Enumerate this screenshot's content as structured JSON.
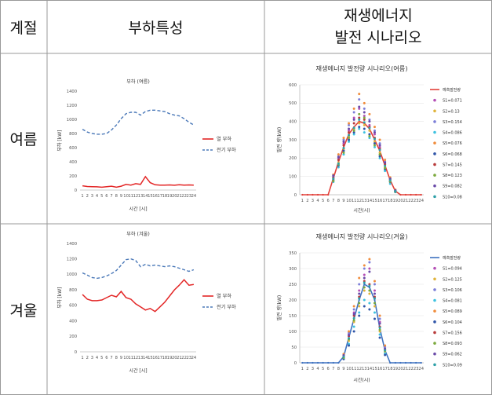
{
  "table": {
    "headers": {
      "season": "계절",
      "load": "부하특성",
      "renewable_line1": "재생에너지",
      "renewable_line2": "발전 시나리오"
    },
    "rows": [
      {
        "season": "여름"
      },
      {
        "season": "겨울"
      }
    ]
  },
  "colors": {
    "heat_load": "#e32626",
    "elec_load": "#4a78b8",
    "summer_pred": "#e2403a",
    "winter_pred": "#3f72c0",
    "scenarios": [
      "#b44fb6",
      "#e0b43c",
      "#7c7ed8",
      "#3ec2e0",
      "#f08c3c",
      "#2f55a8",
      "#b83a3a",
      "#7caa3e",
      "#6a4aa8",
      "#2ea0a8"
    ]
  },
  "chart_data": [
    {
      "id": "summer-load",
      "type": "line",
      "title": "부하 (여름)",
      "xlabel": "시간 [시]",
      "ylabel": "부하 [kW]",
      "ylim": [
        0,
        1400
      ],
      "yticks": [
        0,
        200,
        400,
        600,
        800,
        1000,
        1200,
        1400
      ],
      "x": [
        1,
        2,
        3,
        4,
        5,
        6,
        7,
        8,
        9,
        10,
        11,
        12,
        13,
        14,
        15,
        16,
        17,
        18,
        19,
        20,
        21,
        22,
        23,
        24
      ],
      "series": [
        {
          "name": "열 부하",
          "style": "solid",
          "values": [
            60,
            50,
            48,
            45,
            40,
            48,
            55,
            40,
            55,
            80,
            70,
            90,
            80,
            190,
            105,
            75,
            70,
            70,
            72,
            68,
            75,
            70,
            72,
            70
          ]
        },
        {
          "name": "전기 부하",
          "style": "dashed",
          "values": [
            860,
            820,
            800,
            790,
            790,
            800,
            850,
            920,
            1010,
            1080,
            1100,
            1100,
            1060,
            1110,
            1130,
            1130,
            1120,
            1110,
            1080,
            1060,
            1050,
            1010,
            960,
            920
          ]
        }
      ]
    },
    {
      "id": "summer-renewable",
      "type": "line",
      "title": "재생에너지 발전량 시나리오(여름)",
      "xlabel": "시간(시)",
      "ylabel": "발전 량(kW)",
      "ylim": [
        0,
        600
      ],
      "yticks": [
        0,
        100,
        200,
        300,
        400,
        500,
        600
      ],
      "x": [
        1,
        2,
        3,
        4,
        5,
        6,
        7,
        8,
        9,
        10,
        11,
        12,
        13,
        14,
        15,
        16,
        17,
        18,
        19,
        20,
        21,
        22,
        23,
        24
      ],
      "predicted": {
        "name": "예측발전량",
        "values": [
          0,
          0,
          0,
          0,
          0,
          0,
          90,
          180,
          260,
          330,
          370,
          400,
          390,
          360,
          300,
          240,
          160,
          80,
          20,
          0,
          0,
          0,
          0,
          0
        ]
      },
      "scenarios": [
        {
          "name": "S1=0.071",
          "values": [
            0,
            0,
            0,
            0,
            0,
            0,
            95,
            200,
            280,
            350,
            420,
            470,
            430,
            380,
            330,
            260,
            170,
            85,
            22,
            0,
            0,
            0,
            0,
            0
          ]
        },
        {
          "name": "S2=0.13",
          "values": [
            0,
            0,
            0,
            0,
            0,
            0,
            85,
            175,
            250,
            320,
            360,
            390,
            380,
            350,
            290,
            230,
            150,
            75,
            18,
            0,
            0,
            0,
            0,
            0
          ]
        },
        {
          "name": "S3=0.154",
          "values": [
            0,
            0,
            0,
            0,
            0,
            0,
            100,
            210,
            300,
            380,
            450,
            520,
            470,
            410,
            350,
            280,
            180,
            90,
            25,
            0,
            0,
            0,
            0,
            0
          ]
        },
        {
          "name": "S4=0.086",
          "values": [
            0,
            0,
            0,
            0,
            0,
            0,
            70,
            150,
            220,
            290,
            330,
            360,
            340,
            310,
            260,
            200,
            130,
            60,
            15,
            0,
            0,
            0,
            0,
            0
          ]
        },
        {
          "name": "S5=0.076",
          "values": [
            0,
            0,
            0,
            0,
            0,
            0,
            110,
            220,
            310,
            390,
            470,
            550,
            500,
            440,
            370,
            300,
            190,
            95,
            28,
            0,
            0,
            0,
            0,
            0
          ]
        },
        {
          "name": "S6=0.068",
          "values": [
            0,
            0,
            0,
            0,
            0,
            0,
            80,
            160,
            240,
            300,
            340,
            370,
            360,
            330,
            280,
            210,
            140,
            70,
            16,
            0,
            0,
            0,
            0,
            0
          ]
        },
        {
          "name": "S7=0.145",
          "values": [
            0,
            0,
            0,
            0,
            0,
            0,
            92,
            190,
            270,
            340,
            390,
            420,
            410,
            370,
            310,
            250,
            165,
            82,
            21,
            0,
            0,
            0,
            0,
            0
          ]
        },
        {
          "name": "S8=0.123",
          "values": [
            0,
            0,
            0,
            0,
            0,
            0,
            75,
            165,
            230,
            310,
            350,
            440,
            420,
            320,
            270,
            220,
            145,
            72,
            17,
            0,
            0,
            0,
            0,
            0
          ]
        },
        {
          "name": "S9=0.082",
          "values": [
            0,
            0,
            0,
            0,
            0,
            0,
            105,
            205,
            290,
            360,
            410,
            480,
            450,
            400,
            340,
            270,
            175,
            88,
            24,
            0,
            0,
            0,
            0,
            0
          ]
        },
        {
          "name": "S10=0.08",
          "values": [
            0,
            0,
            0,
            0,
            0,
            0,
            88,
            170,
            255,
            325,
            365,
            410,
            395,
            365,
            305,
            245,
            158,
            78,
            19,
            0,
            0,
            0,
            0,
            0
          ]
        }
      ]
    },
    {
      "id": "winter-load",
      "type": "line",
      "title": "부하 (겨울)",
      "xlabel": "시간 [시]",
      "ylabel": "부하 [kW]",
      "ylim": [
        0,
        1400
      ],
      "yticks": [
        0,
        200,
        400,
        600,
        800,
        1000,
        1200,
        1400
      ],
      "x": [
        1,
        2,
        3,
        4,
        5,
        6,
        7,
        8,
        9,
        10,
        11,
        12,
        13,
        14,
        15,
        16,
        17,
        18,
        19,
        20,
        21,
        22,
        23,
        24
      ],
      "series": [
        {
          "name": "열 부하",
          "style": "solid",
          "values": [
            740,
            680,
            660,
            660,
            670,
            700,
            730,
            710,
            780,
            700,
            680,
            620,
            580,
            540,
            560,
            520,
            580,
            640,
            720,
            800,
            860,
            930,
            860,
            870
          ]
        },
        {
          "name": "전기 부하",
          "style": "dashed",
          "values": [
            1020,
            990,
            960,
            950,
            960,
            980,
            1010,
            1050,
            1120,
            1190,
            1200,
            1180,
            1100,
            1130,
            1110,
            1120,
            1110,
            1100,
            1110,
            1100,
            1080,
            1060,
            1040,
            1060
          ]
        }
      ]
    },
    {
      "id": "winter-renewable",
      "type": "line",
      "title": "재생에너지 발전량 시나리오(겨울)",
      "xlabel": "시간(시)",
      "ylabel": "발전 량(kW)",
      "ylim": [
        0,
        350
      ],
      "yticks": [
        0,
        50,
        100,
        150,
        200,
        250,
        300,
        350
      ],
      "x": [
        1,
        2,
        3,
        4,
        5,
        6,
        7,
        8,
        9,
        10,
        11,
        12,
        13,
        14,
        15,
        16,
        17,
        18,
        19,
        20,
        21,
        22,
        23,
        24
      ],
      "predicted": {
        "name": "예측발전량",
        "values": [
          0,
          0,
          0,
          0,
          0,
          0,
          0,
          0,
          20,
          80,
          140,
          200,
          250,
          240,
          200,
          110,
          40,
          0,
          0,
          0,
          0,
          0,
          0,
          0
        ]
      },
      "scenarios": [
        {
          "name": "S1=0.094",
          "values": [
            0,
            0,
            0,
            0,
            0,
            0,
            0,
            0,
            22,
            90,
            160,
            230,
            280,
            300,
            230,
            130,
            45,
            0,
            0,
            0,
            0,
            0,
            0,
            0
          ]
        },
        {
          "name": "S2=0.125",
          "values": [
            0,
            0,
            0,
            0,
            0,
            0,
            0,
            0,
            18,
            70,
            130,
            180,
            230,
            220,
            180,
            100,
            35,
            0,
            0,
            0,
            0,
            0,
            0,
            0
          ]
        },
        {
          "name": "S3=0.106",
          "values": [
            0,
            0,
            0,
            0,
            0,
            0,
            0,
            0,
            25,
            95,
            170,
            250,
            300,
            320,
            250,
            140,
            50,
            0,
            0,
            0,
            0,
            0,
            0,
            0
          ]
        },
        {
          "name": "S4=0.081",
          "values": [
            0,
            0,
            0,
            0,
            0,
            0,
            0,
            0,
            15,
            60,
            115,
            160,
            200,
            190,
            160,
            90,
            30,
            0,
            0,
            0,
            0,
            0,
            0,
            0
          ]
        },
        {
          "name": "S5=0.089",
          "values": [
            0,
            0,
            0,
            0,
            0,
            0,
            0,
            0,
            28,
            100,
            180,
            270,
            310,
            330,
            260,
            150,
            55,
            0,
            0,
            0,
            0,
            0,
            0,
            0
          ]
        },
        {
          "name": "S6=0.104",
          "values": [
            0,
            0,
            0,
            0,
            0,
            0,
            0,
            0,
            12,
            55,
            100,
            150,
            180,
            170,
            140,
            80,
            25,
            0,
            0,
            0,
            0,
            0,
            0,
            0
          ]
        },
        {
          "name": "S7=0.156",
          "values": [
            0,
            0,
            0,
            0,
            0,
            0,
            0,
            0,
            20,
            85,
            150,
            210,
            260,
            250,
            210,
            115,
            42,
            0,
            0,
            0,
            0,
            0,
            0,
            0
          ]
        },
        {
          "name": "S8=0.093",
          "values": [
            0,
            0,
            0,
            0,
            0,
            0,
            0,
            0,
            16,
            75,
            135,
            190,
            240,
            230,
            190,
            105,
            38,
            0,
            0,
            0,
            0,
            0,
            0,
            0
          ]
        },
        {
          "name": "S9=0.062",
          "values": [
            0,
            0,
            0,
            0,
            0,
            0,
            0,
            0,
            24,
            88,
            155,
            220,
            270,
            290,
            220,
            125,
            44,
            0,
            0,
            0,
            0,
            0,
            0,
            0
          ]
        },
        {
          "name": "S10=0.09",
          "values": [
            0,
            0,
            0,
            0,
            0,
            0,
            0,
            0,
            19,
            78,
            142,
            205,
            255,
            245,
            205,
            112,
            40,
            0,
            0,
            0,
            0,
            0,
            0,
            0
          ]
        }
      ]
    }
  ]
}
